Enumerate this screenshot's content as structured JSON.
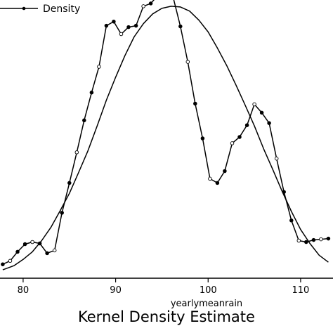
{
  "chart_data": {
    "type": "line",
    "title": "Kernel Density Estimate",
    "xlabel": "yearlymeanrain",
    "ylabel": "",
    "xlim": [
      77.5,
      113.5
    ],
    "ylim": [
      0.0,
      0.4
    ],
    "x_ticks": [
      80,
      90,
      100,
      110
    ],
    "x_tick_labels": [
      "80",
      "90",
      "100",
      "110"
    ],
    "legend": {
      "position": "top-left",
      "entries": [
        "Density"
      ]
    },
    "grid": false,
    "series": [
      {
        "name": "Density",
        "marker": "circle",
        "points": [
          {
            "x": 77.8,
            "y": 0.02
          },
          {
            "x": 78.6,
            "y": 0.025
          },
          {
            "x": 79.4,
            "y": 0.038
          },
          {
            "x": 80.2,
            "y": 0.049
          },
          {
            "x": 81.0,
            "y": 0.052
          },
          {
            "x": 81.8,
            "y": 0.05
          },
          {
            "x": 82.6,
            "y": 0.036
          },
          {
            "x": 83.4,
            "y": 0.04
          },
          {
            "x": 84.2,
            "y": 0.094
          },
          {
            "x": 85.0,
            "y": 0.137
          },
          {
            "x": 85.8,
            "y": 0.181
          },
          {
            "x": 86.6,
            "y": 0.227
          },
          {
            "x": 87.4,
            "y": 0.267
          },
          {
            "x": 88.2,
            "y": 0.304
          },
          {
            "x": 89.0,
            "y": 0.363
          },
          {
            "x": 89.8,
            "y": 0.369
          },
          {
            "x": 90.6,
            "y": 0.351
          },
          {
            "x": 91.4,
            "y": 0.361
          },
          {
            "x": 92.2,
            "y": 0.363
          },
          {
            "x": 93.0,
            "y": 0.391
          },
          {
            "x": 93.8,
            "y": 0.395
          },
          {
            "x": 94.6,
            "y": 0.407
          },
          {
            "x": 95.4,
            "y": 0.409
          },
          {
            "x": 96.2,
            "y": 0.405
          },
          {
            "x": 97.0,
            "y": 0.362
          },
          {
            "x": 97.8,
            "y": 0.311
          },
          {
            "x": 98.6,
            "y": 0.251
          },
          {
            "x": 99.4,
            "y": 0.201
          },
          {
            "x": 100.2,
            "y": 0.143
          },
          {
            "x": 101.0,
            "y": 0.137
          },
          {
            "x": 101.8,
            "y": 0.154
          },
          {
            "x": 102.6,
            "y": 0.194
          },
          {
            "x": 103.4,
            "y": 0.203
          },
          {
            "x": 104.2,
            "y": 0.22
          },
          {
            "x": 105.0,
            "y": 0.25
          },
          {
            "x": 105.8,
            "y": 0.238
          },
          {
            "x": 106.6,
            "y": 0.223
          },
          {
            "x": 107.4,
            "y": 0.172
          },
          {
            "x": 108.2,
            "y": 0.124
          },
          {
            "x": 109.0,
            "y": 0.083
          },
          {
            "x": 109.8,
            "y": 0.054
          },
          {
            "x": 110.6,
            "y": 0.052
          },
          {
            "x": 111.4,
            "y": 0.055
          },
          {
            "x": 112.2,
            "y": 0.056
          },
          {
            "x": 113.0,
            "y": 0.057
          }
        ]
      },
      {
        "name": "",
        "marker": "none",
        "points": [
          {
            "x": 77.8,
            "y": 0.012
          },
          {
            "x": 79.0,
            "y": 0.018
          },
          {
            "x": 80.0,
            "y": 0.027
          },
          {
            "x": 81.0,
            "y": 0.038
          },
          {
            "x": 82.0,
            "y": 0.054
          },
          {
            "x": 83.0,
            "y": 0.073
          },
          {
            "x": 84.0,
            "y": 0.097
          },
          {
            "x": 85.0,
            "y": 0.122
          },
          {
            "x": 86.0,
            "y": 0.152
          },
          {
            "x": 87.0,
            "y": 0.183
          },
          {
            "x": 88.0,
            "y": 0.219
          },
          {
            "x": 89.0,
            "y": 0.256
          },
          {
            "x": 90.0,
            "y": 0.289
          },
          {
            "x": 91.0,
            "y": 0.32
          },
          {
            "x": 92.0,
            "y": 0.347
          },
          {
            "x": 93.0,
            "y": 0.366
          },
          {
            "x": 94.0,
            "y": 0.38
          },
          {
            "x": 95.0,
            "y": 0.388
          },
          {
            "x": 96.0,
            "y": 0.391
          },
          {
            "x": 97.0,
            "y": 0.39
          },
          {
            "x": 98.0,
            "y": 0.384
          },
          {
            "x": 99.0,
            "y": 0.371
          },
          {
            "x": 100.0,
            "y": 0.354
          },
          {
            "x": 101.0,
            "y": 0.331
          },
          {
            "x": 102.0,
            "y": 0.306
          },
          {
            "x": 103.0,
            "y": 0.278
          },
          {
            "x": 104.0,
            "y": 0.249
          },
          {
            "x": 105.0,
            "y": 0.219
          },
          {
            "x": 106.0,
            "y": 0.186
          },
          {
            "x": 107.0,
            "y": 0.156
          },
          {
            "x": 108.0,
            "y": 0.125
          },
          {
            "x": 109.0,
            "y": 0.096
          },
          {
            "x": 110.0,
            "y": 0.07
          },
          {
            "x": 111.0,
            "y": 0.05
          },
          {
            "x": 112.0,
            "y": 0.033
          },
          {
            "x": 113.0,
            "y": 0.023
          }
        ]
      }
    ]
  }
}
